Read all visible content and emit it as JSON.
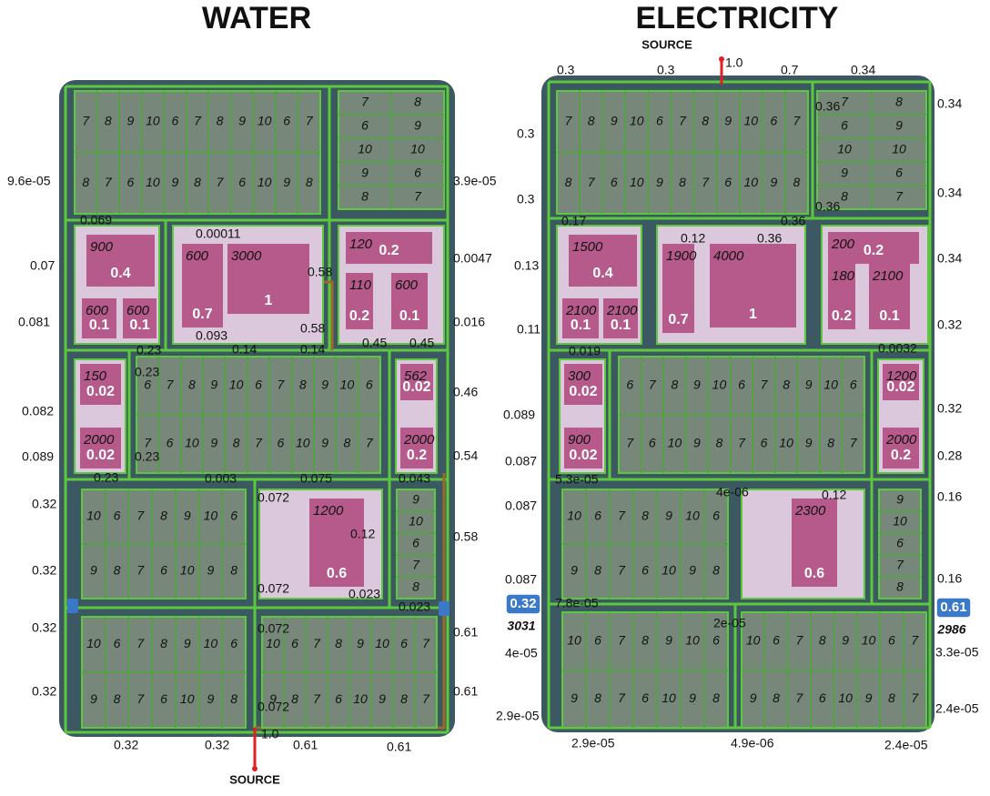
{
  "panels": [
    {
      "title": "WATER",
      "source": {
        "label": "SOURCE",
        "value": "1.0"
      },
      "edge_labels": [
        "9.6e-05",
        "3.9e-05",
        "0.069",
        "0.00011",
        "0.07",
        "0.58",
        "0.0047",
        "0.081",
        "0.093",
        "0.58",
        "0.016",
        "0.45",
        "0.45",
        "0.23",
        "0.14",
        "0.14",
        "0.23",
        "0.46",
        "0.082",
        "0.089",
        "0.23",
        "0.54",
        "0.23",
        "0.003",
        "0.075",
        "0.043",
        "0.072",
        "0.12",
        "0.58",
        "0.32",
        "0.32",
        "0.072",
        "0.023",
        "0.023",
        "0.32",
        "0.072",
        "0.61",
        "0.32",
        "0.61",
        "0.072",
        "0.32",
        "0.32",
        "0.61",
        "0.61"
      ],
      "lot_blocks": [
        {
          "rows": [
            [
              "7",
              "8",
              "9",
              "10",
              "6",
              "7",
              "8",
              "9",
              "10",
              "6",
              "7"
            ],
            [
              "8",
              "7",
              "6",
              "10",
              "9",
              "8",
              "7",
              "6",
              "10",
              "9",
              "8"
            ]
          ]
        },
        {
          "rows": [
            [
              "7",
              "8"
            ],
            [
              "6",
              "9"
            ],
            [
              "10",
              "10"
            ],
            [
              "9",
              "6"
            ],
            [
              "8",
              "7"
            ]
          ]
        },
        {
          "rows": [
            [
              "6",
              "7",
              "8",
              "9",
              "10",
              "6",
              "7",
              "8",
              "9",
              "10",
              "6"
            ],
            [
              "7",
              "6",
              "10",
              "9",
              "8",
              "7",
              "6",
              "10",
              "9",
              "8",
              "7"
            ]
          ]
        },
        {
          "rows": [
            [
              "10",
              "6",
              "7",
              "8",
              "9",
              "10",
              "6"
            ],
            [
              "9",
              "8",
              "7",
              "6",
              "10",
              "9",
              "8"
            ]
          ]
        },
        {
          "rows": [
            [
              "9"
            ],
            [
              "10"
            ],
            [
              "6"
            ],
            [
              "7"
            ],
            [
              "8"
            ]
          ]
        },
        {
          "rows": [
            [
              "10",
              "6",
              "7",
              "8",
              "9",
              "10",
              "6"
            ],
            [
              "9",
              "8",
              "7",
              "6",
              "10",
              "9",
              "8"
            ]
          ]
        },
        {
          "rows": [
            [
              "10",
              "6",
              "7",
              "8",
              "9",
              "10",
              "6",
              "7"
            ],
            [
              "9",
              "8",
              "7",
              "6",
              "10",
              "9",
              "8",
              "7"
            ]
          ]
        }
      ],
      "zones": [
        {
          "buildings": [
            {
              "size": "900",
              "load": "0.4"
            },
            {
              "size": "600",
              "load": "0.1"
            },
            {
              "size": "600",
              "load": "0.1"
            }
          ]
        },
        {
          "buildings": [
            {
              "size": "600",
              "load": "0.7"
            },
            {
              "size": "3000",
              "load": "1"
            }
          ]
        },
        {
          "buildings": [
            {
              "size": "120",
              "load": "0.2"
            },
            {
              "size": "110",
              "load": "0.2"
            },
            {
              "size": "600",
              "load": "0.1"
            }
          ]
        },
        {
          "buildings": [
            {
              "size": "150",
              "load": "0.02"
            },
            {
              "size": "2000",
              "load": "0.02"
            }
          ]
        },
        {
          "buildings": [
            {
              "size": "562",
              "load": "0.02"
            },
            {
              "size": "2000",
              "load": "0.2"
            }
          ]
        },
        {
          "buildings": [
            {
              "size": "1200",
              "load": "0.6"
            }
          ]
        }
      ],
      "nodes": []
    },
    {
      "title": "ELECTRICITY",
      "source": {
        "label": "SOURCE",
        "value": "1.0"
      },
      "edge_labels": [
        "0.3",
        "0.3",
        "0.7",
        "0.34",
        "0.34",
        "0.3",
        "0.36",
        "0.3",
        "0.36",
        "0.34",
        "0.17",
        "0.36",
        "0.12",
        "0.36",
        "0.13",
        "0.34",
        "0.11",
        "0.32",
        "0.019",
        "0.0032",
        "0.089",
        "0.32",
        "0.087",
        "0.28",
        "5.3e-05",
        "4e-06",
        "0.12",
        "0.16",
        "0.087",
        "0.087",
        "0.16",
        "7.8e-05",
        "2e-05",
        "4e-05",
        "3.3e-05",
        "2.9e-05",
        "2.4e-05",
        "2.9e-05",
        "4.9e-06",
        "2.4e-05"
      ],
      "lot_blocks": [
        {
          "rows": [
            [
              "7",
              "8",
              "9",
              "10",
              "6",
              "7",
              "8",
              "9",
              "10",
              "6",
              "7"
            ],
            [
              "8",
              "7",
              "6",
              "10",
              "9",
              "8",
              "7",
              "6",
              "10",
              "9",
              "8"
            ]
          ]
        },
        {
          "rows": [
            [
              "7",
              "8"
            ],
            [
              "6",
              "9"
            ],
            [
              "10",
              "10"
            ],
            [
              "9",
              "6"
            ],
            [
              "8",
              "7"
            ]
          ]
        },
        {
          "rows": [
            [
              "6",
              "7",
              "8",
              "9",
              "10",
              "6",
              "7",
              "8",
              "9",
              "10",
              "6"
            ],
            [
              "7",
              "6",
              "10",
              "9",
              "8",
              "7",
              "6",
              "10",
              "9",
              "8",
              "7"
            ]
          ]
        },
        {
          "rows": [
            [
              "10",
              "6",
              "7",
              "8",
              "9",
              "10",
              "6"
            ],
            [
              "9",
              "8",
              "7",
              "6",
              "10",
              "9",
              "8"
            ]
          ]
        },
        {
          "rows": [
            [
              "9"
            ],
            [
              "10"
            ],
            [
              "6"
            ],
            [
              "7"
            ],
            [
              "8"
            ]
          ]
        },
        {
          "rows": [
            [
              "10",
              "6",
              "7",
              "8",
              "9",
              "10",
              "6"
            ],
            [
              "9",
              "8",
              "7",
              "6",
              "10",
              "9",
              "8"
            ]
          ]
        },
        {
          "rows": [
            [
              "10",
              "6",
              "7",
              "8",
              "9",
              "10",
              "6",
              "7"
            ],
            [
              "9",
              "8",
              "7",
              "6",
              "10",
              "9",
              "8",
              "7"
            ]
          ]
        }
      ],
      "zones": [
        {
          "buildings": [
            {
              "size": "1500",
              "load": "0.4"
            },
            {
              "size": "2100",
              "load": "0.1"
            },
            {
              "size": "2100",
              "load": "0.1"
            }
          ]
        },
        {
          "buildings": [
            {
              "size": "1900",
              "load": "0.7"
            },
            {
              "size": "4000",
              "load": "1"
            }
          ]
        },
        {
          "buildings": [
            {
              "size": "200",
              "load": "0.2"
            },
            {
              "size": "180",
              "load": "0.2"
            },
            {
              "size": "2100",
              "load": "0.1"
            }
          ]
        },
        {
          "buildings": [
            {
              "size": "300",
              "load": "0.02"
            },
            {
              "size": "900",
              "load": "0.02"
            }
          ]
        },
        {
          "buildings": [
            {
              "size": "1200",
              "load": "0.02"
            },
            {
              "size": "2000",
              "load": "0.2"
            }
          ]
        },
        {
          "buildings": [
            {
              "size": "2300",
              "load": "0.6"
            }
          ]
        }
      ],
      "nodes": [
        {
          "load": "0.32",
          "id": "3031"
        },
        {
          "load": "0.61",
          "id": "2986"
        }
      ]
    }
  ]
}
